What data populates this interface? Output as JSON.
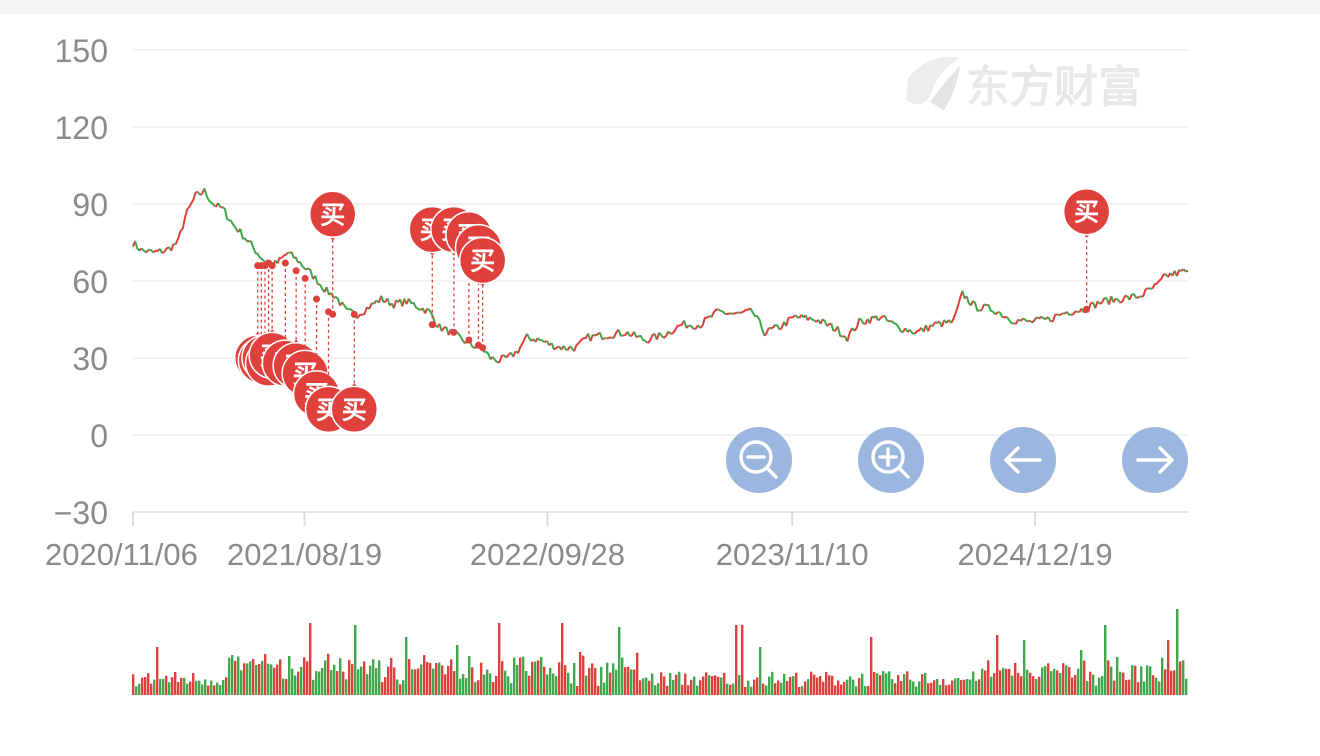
{
  "watermark": {
    "brand": "东方财富"
  },
  "controls": [
    {
      "name": "zoom-out-button",
      "icon": "zoom-out-icon"
    },
    {
      "name": "zoom-in-button",
      "icon": "zoom-in-icon"
    },
    {
      "name": "pan-left-button",
      "icon": "arrow-left-icon"
    },
    {
      "name": "pan-right-button",
      "icon": "arrow-right-icon"
    }
  ],
  "colors": {
    "up": "#e0403b",
    "down": "#3fa84a",
    "marker": "#e0403b",
    "grid": "#eeeeee",
    "axis_text": "#8a8a8a",
    "button": "#9bb6df",
    "watermark": "#ececec"
  },
  "chart_data": {
    "type": "line",
    "title": "",
    "xlabel": "",
    "ylabel": "",
    "x_range": [
      "2020-11-06",
      "2025-08-31"
    ],
    "ylim": [
      -30,
      150
    ],
    "y_ticks": [
      "150",
      "120",
      "90",
      "60",
      "30",
      "0",
      "−30"
    ],
    "x_ticks": [
      {
        "label": "2020/11/06",
        "date": "2020-11-06"
      },
      {
        "label": "2021/08/19",
        "date": "2021-08-19"
      },
      {
        "label": "2022/09/28",
        "date": "2022-09-28"
      },
      {
        "label": "2023/11/10",
        "date": "2023-11-10"
      },
      {
        "label": "2024/12/19",
        "date": "2024-12-19"
      }
    ],
    "grid": true,
    "series": [
      {
        "values": [
          [
            "2020-11-06",
            75
          ],
          [
            "2020-11-20",
            72
          ],
          [
            "2020-12-10",
            71
          ],
          [
            "2021-01-01",
            72
          ],
          [
            "2021-01-20",
            75
          ],
          [
            "2021-02-01",
            85
          ],
          [
            "2021-02-18",
            93
          ],
          [
            "2021-03-05",
            95
          ],
          [
            "2021-03-20",
            90
          ],
          [
            "2021-04-05",
            88
          ],
          [
            "2021-04-22",
            82
          ],
          [
            "2021-05-08",
            78
          ],
          [
            "2021-05-22",
            74
          ],
          [
            "2021-06-05",
            70
          ],
          [
            "2021-06-20",
            66
          ],
          [
            "2021-07-05",
            67
          ],
          [
            "2021-07-22",
            71
          ],
          [
            "2021-08-08",
            68
          ],
          [
            "2021-08-25",
            64
          ],
          [
            "2021-09-10",
            60
          ],
          [
            "2021-09-25",
            56
          ],
          [
            "2021-10-10",
            54
          ],
          [
            "2021-10-28",
            48
          ],
          [
            "2021-11-15",
            47
          ],
          [
            "2021-12-05",
            50
          ],
          [
            "2021-12-25",
            53
          ],
          [
            "2022-01-15",
            51
          ],
          [
            "2022-02-05",
            52
          ],
          [
            "2022-02-25",
            50
          ],
          [
            "2022-03-15",
            48
          ],
          [
            "2022-04-01",
            42
          ],
          [
            "2022-04-20",
            40
          ],
          [
            "2022-05-10",
            37
          ],
          [
            "2022-05-25",
            35
          ],
          [
            "2022-06-10",
            34
          ],
          [
            "2022-06-25",
            30
          ],
          [
            "2022-07-10",
            29
          ],
          [
            "2022-07-25",
            30
          ],
          [
            "2022-08-10",
            33
          ],
          [
            "2022-08-25",
            38
          ],
          [
            "2022-09-15",
            37
          ],
          [
            "2022-10-05",
            35
          ],
          [
            "2022-10-25",
            34
          ],
          [
            "2022-11-15",
            34
          ],
          [
            "2022-12-05",
            38
          ],
          [
            "2023-01-05",
            39
          ],
          [
            "2023-02-05",
            40
          ],
          [
            "2023-03-10",
            37
          ],
          [
            "2023-04-10",
            39
          ],
          [
            "2023-05-10",
            43
          ],
          [
            "2023-06-10",
            43
          ],
          [
            "2023-07-10",
            48
          ],
          [
            "2023-08-10",
            47
          ],
          [
            "2023-09-05",
            48
          ],
          [
            "2023-09-25",
            40
          ],
          [
            "2023-10-20",
            42
          ],
          [
            "2023-11-15",
            46
          ],
          [
            "2023-12-20",
            45
          ],
          [
            "2024-01-25",
            41
          ],
          [
            "2024-02-10",
            38
          ],
          [
            "2024-03-01",
            44
          ],
          [
            "2024-04-05",
            46
          ],
          [
            "2024-05-05",
            42
          ],
          [
            "2024-06-05",
            40
          ],
          [
            "2024-07-05",
            43
          ],
          [
            "2024-08-05",
            44
          ],
          [
            "2024-08-20",
            55
          ],
          [
            "2024-09-10",
            50
          ],
          [
            "2024-10-10",
            49
          ],
          [
            "2024-11-10",
            45
          ],
          [
            "2024-12-10",
            44
          ],
          [
            "2025-01-10",
            45
          ],
          [
            "2025-02-10",
            48
          ],
          [
            "2025-03-10",
            49
          ],
          [
            "2025-04-10",
            52
          ],
          [
            "2025-05-10",
            53
          ],
          [
            "2025-06-10",
            54
          ],
          [
            "2025-07-10",
            58
          ],
          [
            "2025-07-25",
            62
          ],
          [
            "2025-08-31",
            64
          ]
        ]
      }
    ],
    "annotations": [
      {
        "text": "买",
        "date": "2021-06-02",
        "value": 66,
        "label_value": 30
      },
      {
        "text": "买",
        "date": "2021-06-08",
        "value": 66,
        "label_value": 29
      },
      {
        "text": "买",
        "date": "2021-06-14",
        "value": 66,
        "label_value": 30
      },
      {
        "text": "买",
        "date": "2021-06-20",
        "value": 67,
        "label_value": 28
      },
      {
        "text": "买",
        "date": "2021-06-26",
        "value": 66,
        "label_value": 31
      },
      {
        "text": "买",
        "date": "2021-07-18",
        "value": 67,
        "label_value": 28
      },
      {
        "text": "买",
        "date": "2021-08-05",
        "value": 64,
        "label_value": 27
      },
      {
        "text": "买",
        "date": "2021-08-20",
        "value": 61,
        "label_value": 24
      },
      {
        "text": "买",
        "date": "2021-09-08",
        "value": 53,
        "label_value": 16
      },
      {
        "text": "买",
        "date": "2021-09-28",
        "value": 48,
        "label_value": 10
      },
      {
        "text": "买",
        "date": "2021-10-05",
        "value": 47,
        "label_value": 86
      },
      {
        "text": "买",
        "date": "2021-11-10",
        "value": 47,
        "label_value": 10
      },
      {
        "text": "买",
        "date": "2022-03-20",
        "value": 43,
        "label_value": 80
      },
      {
        "text": "买",
        "date": "2022-04-25",
        "value": 40,
        "label_value": 80
      },
      {
        "text": "买",
        "date": "2022-05-20",
        "value": 37,
        "label_value": 78
      },
      {
        "text": "买",
        "date": "2022-06-05",
        "value": 35,
        "label_value": 73
      },
      {
        "text": "买",
        "date": "2022-06-12",
        "value": 34,
        "label_value": 68
      },
      {
        "text": "买",
        "date": "2025-03-15",
        "value": 49,
        "label_value": 87
      }
    ]
  }
}
